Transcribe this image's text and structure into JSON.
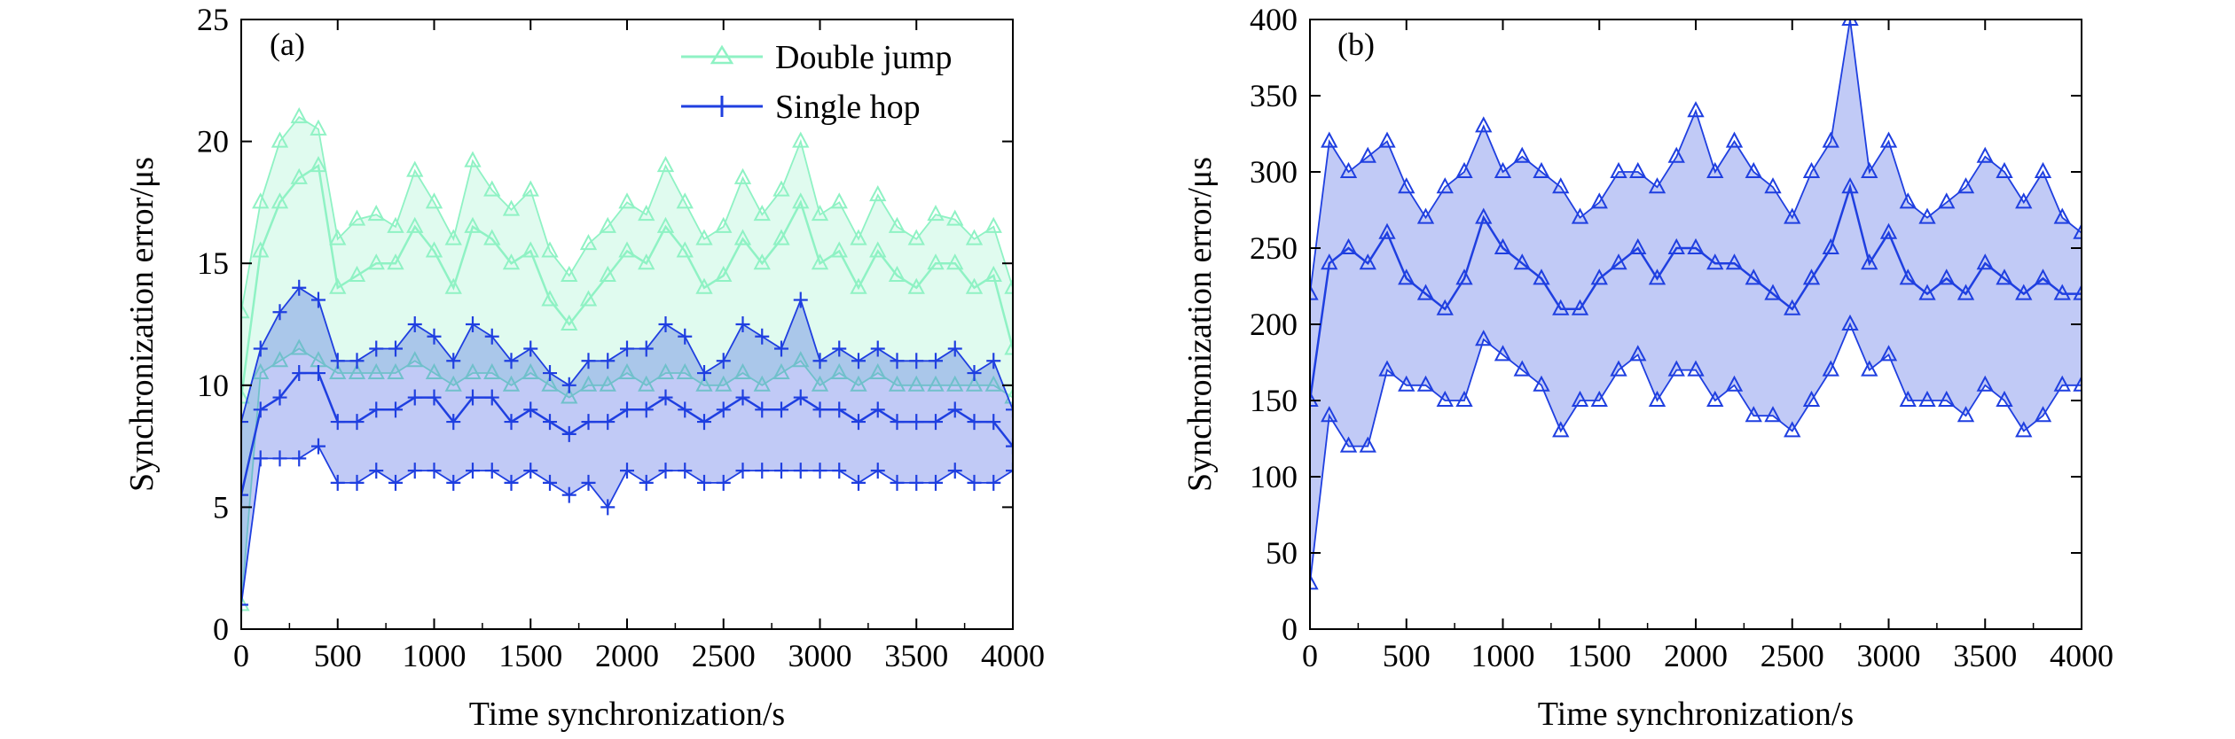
{
  "colors": {
    "double_jump": "#8ff2c4",
    "single_hop": "#1f3fe0",
    "panel_b": "#1f3fe0",
    "axis": "#000000"
  },
  "chart_data": [
    {
      "type": "line",
      "panel_label": "(a)",
      "xlabel": "Time synchronization/s",
      "ylabel": "Synchronization error/μs",
      "xlim": [
        0,
        4000
      ],
      "ylim": [
        0,
        25
      ],
      "xticks": [
        0,
        500,
        1000,
        1500,
        2000,
        2500,
        3000,
        3500,
        4000
      ],
      "yticks": [
        0,
        5,
        10,
        15,
        20,
        25
      ],
      "legend": "top-right",
      "series": [
        {
          "name": "Double jump",
          "marker": "triangle",
          "x": [
            0,
            100,
            200,
            300,
            400,
            500,
            600,
            700,
            800,
            900,
            1000,
            1100,
            1200,
            1300,
            1400,
            1500,
            1600,
            1700,
            1800,
            1900,
            2000,
            2100,
            2200,
            2300,
            2400,
            2500,
            2600,
            2700,
            2800,
            2900,
            3000,
            3100,
            3200,
            3300,
            3400,
            3500,
            3600,
            3700,
            3800,
            3900,
            4000
          ],
          "y": [
            9.5,
            15.5,
            17.5,
            18.5,
            19.0,
            14.0,
            14.5,
            15.0,
            15.0,
            16.5,
            15.5,
            14.0,
            16.5,
            16.0,
            15.0,
            15.5,
            13.5,
            12.5,
            13.5,
            14.5,
            15.5,
            15.0,
            16.5,
            15.5,
            14.0,
            14.5,
            16.0,
            15.0,
            16.0,
            17.5,
            15.0,
            15.5,
            14.0,
            15.5,
            14.5,
            14.0,
            15.0,
            15.0,
            14.0,
            14.5,
            11.5
          ],
          "low": [
            1.0,
            10.5,
            11.0,
            11.5,
            11.0,
            10.5,
            10.5,
            10.5,
            10.5,
            11.0,
            10.5,
            10.0,
            10.5,
            10.5,
            10.0,
            10.5,
            10.0,
            9.5,
            10.0,
            10.0,
            10.5,
            10.0,
            10.5,
            10.5,
            10.0,
            10.0,
            10.5,
            10.0,
            10.5,
            11.0,
            10.0,
            10.5,
            10.0,
            10.5,
            10.0,
            10.0,
            10.0,
            10.0,
            10.0,
            10.0,
            9.5
          ],
          "high": [
            13.0,
            17.5,
            20.0,
            21.0,
            20.5,
            16.0,
            16.8,
            17.0,
            16.5,
            18.8,
            17.5,
            16.0,
            19.2,
            18.0,
            17.2,
            18.0,
            15.5,
            14.5,
            15.8,
            16.5,
            17.5,
            17.0,
            19.0,
            17.5,
            16.0,
            16.5,
            18.5,
            17.0,
            18.0,
            20.0,
            17.0,
            17.5,
            16.0,
            17.8,
            16.5,
            16.0,
            17.0,
            16.8,
            16.0,
            16.5,
            14.0
          ]
        },
        {
          "name": "Single hop",
          "marker": "plus",
          "x": [
            0,
            100,
            200,
            300,
            400,
            500,
            600,
            700,
            800,
            900,
            1000,
            1100,
            1200,
            1300,
            1400,
            1500,
            1600,
            1700,
            1800,
            1900,
            2000,
            2100,
            2200,
            2300,
            2400,
            2500,
            2600,
            2700,
            2800,
            2900,
            3000,
            3100,
            3200,
            3300,
            3400,
            3500,
            3600,
            3700,
            3800,
            3900,
            4000
          ],
          "y": [
            5.5,
            9.0,
            9.5,
            10.5,
            10.5,
            8.5,
            8.5,
            9.0,
            9.0,
            9.5,
            9.5,
            8.5,
            9.5,
            9.5,
            8.5,
            9.0,
            8.5,
            8.0,
            8.5,
            8.5,
            9.0,
            9.0,
            9.5,
            9.0,
            8.5,
            9.0,
            9.5,
            9.0,
            9.0,
            9.5,
            9.0,
            9.0,
            8.5,
            9.0,
            8.5,
            8.5,
            8.5,
            9.0,
            8.5,
            8.5,
            7.5
          ],
          "low": [
            1.0,
            7.0,
            7.0,
            7.0,
            7.5,
            6.0,
            6.0,
            6.5,
            6.0,
            6.5,
            6.5,
            6.0,
            6.5,
            6.5,
            6.0,
            6.5,
            6.0,
            5.5,
            6.0,
            5.0,
            6.5,
            6.0,
            6.5,
            6.5,
            6.0,
            6.0,
            6.5,
            6.5,
            6.5,
            6.5,
            6.5,
            6.5,
            6.0,
            6.5,
            6.0,
            6.0,
            6.0,
            6.5,
            6.0,
            6.0,
            6.5
          ],
          "high": [
            8.5,
            11.5,
            13.0,
            14.0,
            13.5,
            11.0,
            11.0,
            11.5,
            11.5,
            12.5,
            12.0,
            11.0,
            12.5,
            12.0,
            11.0,
            11.5,
            10.5,
            10.0,
            11.0,
            11.0,
            11.5,
            11.5,
            12.5,
            12.0,
            10.5,
            11.0,
            12.5,
            12.0,
            11.5,
            13.5,
            11.0,
            11.5,
            11.0,
            11.5,
            11.0,
            11.0,
            11.0,
            11.5,
            10.5,
            11.0,
            9.0
          ]
        }
      ]
    },
    {
      "type": "line",
      "panel_label": "(b)",
      "xlabel": "Time synchronization/s",
      "ylabel": "Synchronization error/μs",
      "xlim": [
        0,
        4000
      ],
      "ylim": [
        0,
        400
      ],
      "xticks": [
        0,
        500,
        1000,
        1500,
        2000,
        2500,
        3000,
        3500,
        4000
      ],
      "yticks": [
        0,
        50,
        100,
        150,
        200,
        250,
        300,
        350,
        400
      ],
      "legend": "none",
      "series": [
        {
          "marker": "triangle",
          "x": [
            0,
            100,
            200,
            300,
            400,
            500,
            600,
            700,
            800,
            900,
            1000,
            1100,
            1200,
            1300,
            1400,
            1500,
            1600,
            1700,
            1800,
            1900,
            2000,
            2100,
            2200,
            2300,
            2400,
            2500,
            2600,
            2700,
            2800,
            2900,
            3000,
            3100,
            3200,
            3300,
            3400,
            3500,
            3600,
            3700,
            3800,
            3900,
            4000
          ],
          "y": [
            150,
            240,
            250,
            240,
            260,
            230,
            220,
            210,
            230,
            270,
            250,
            240,
            230,
            210,
            210,
            230,
            240,
            250,
            230,
            250,
            250,
            240,
            240,
            230,
            220,
            210,
            230,
            250,
            290,
            240,
            260,
            230,
            220,
            230,
            220,
            240,
            230,
            220,
            230,
            220,
            220
          ],
          "low": [
            30,
            140,
            120,
            120,
            170,
            160,
            160,
            150,
            150,
            190,
            180,
            170,
            160,
            130,
            150,
            150,
            170,
            180,
            150,
            170,
            170,
            150,
            160,
            140,
            140,
            130,
            150,
            170,
            200,
            170,
            180,
            150,
            150,
            150,
            140,
            160,
            150,
            130,
            140,
            160,
            160
          ],
          "high": [
            220,
            320,
            300,
            310,
            320,
            290,
            270,
            290,
            300,
            330,
            300,
            310,
            300,
            290,
            270,
            280,
            300,
            300,
            290,
            310,
            340,
            300,
            320,
            300,
            290,
            270,
            300,
            320,
            400,
            300,
            320,
            280,
            270,
            280,
            290,
            310,
            300,
            280,
            300,
            270,
            260
          ]
        }
      ]
    }
  ]
}
